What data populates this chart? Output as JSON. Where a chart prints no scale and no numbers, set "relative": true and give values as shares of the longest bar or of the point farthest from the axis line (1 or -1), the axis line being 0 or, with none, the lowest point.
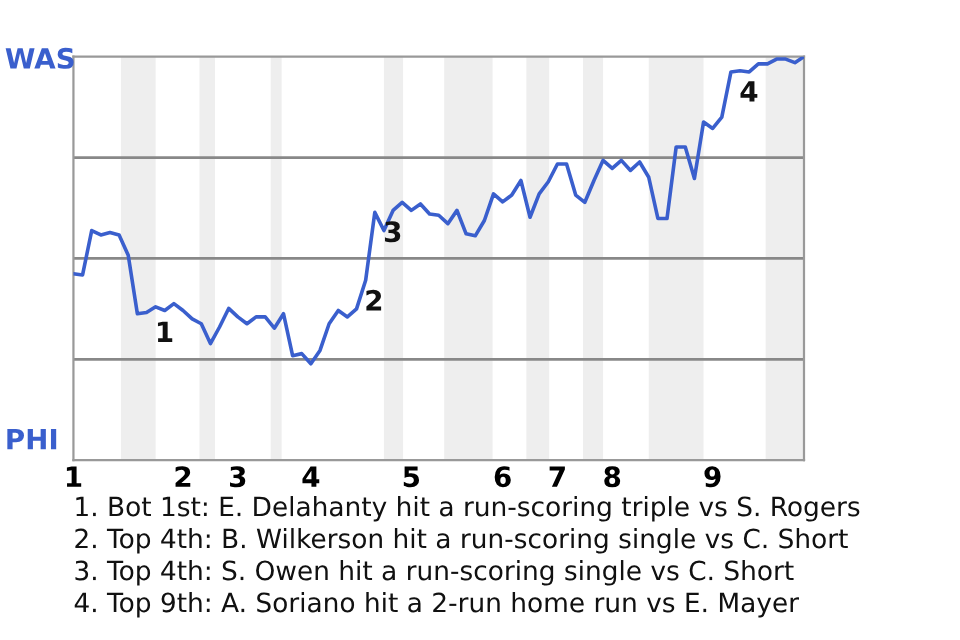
{
  "chart_data": {
    "type": "line",
    "relative": true,
    "categories": [
      "1",
      null,
      null,
      null,
      null,
      null,
      null,
      null,
      null,
      null,
      null,
      null,
      "2",
      null,
      null,
      null,
      null,
      null,
      "3",
      null,
      null,
      null,
      null,
      null,
      null,
      null,
      "4",
      null,
      null,
      null,
      null,
      null,
      null,
      null,
      null,
      null,
      null,
      "5",
      null,
      null,
      null,
      null,
      null,
      null,
      null,
      null,
      null,
      "6",
      null,
      null,
      null,
      null,
      null,
      "7",
      null,
      null,
      null,
      null,
      null,
      "8",
      null,
      null,
      null,
      null,
      null,
      null,
      null,
      null,
      null,
      null,
      "9",
      null,
      null,
      null,
      null,
      null,
      null,
      null,
      null,
      null,
      null
    ],
    "series": [
      {
        "color": "#3a5fcd",
        "values": [
          0.462,
          0.459,
          0.569,
          0.558,
          0.564,
          0.558,
          0.508,
          0.363,
          0.366,
          0.38,
          0.371,
          0.388,
          0.371,
          0.35,
          0.338,
          0.289,
          0.33,
          0.376,
          0.355,
          0.338,
          0.355,
          0.355,
          0.327,
          0.363,
          0.259,
          0.264,
          0.239,
          0.272,
          0.338,
          0.371,
          0.355,
          0.375,
          0.446,
          0.614,
          0.569,
          0.619,
          0.639,
          0.619,
          0.635,
          0.61,
          0.607,
          0.586,
          0.619,
          0.561,
          0.556,
          0.594,
          0.66,
          0.64,
          0.657,
          0.693,
          0.602,
          0.66,
          0.69,
          0.734,
          0.734,
          0.657,
          0.639,
          0.693,
          0.743,
          0.723,
          0.743,
          0.718,
          0.739,
          0.701,
          0.599,
          0.599,
          0.776,
          0.776,
          0.698,
          0.838,
          0.822,
          0.85,
          0.962,
          0.965,
          0.962,
          0.982,
          0.982,
          0.994,
          0.994,
          0.985,
          1.0
        ]
      }
    ],
    "ref_lines": [
      {
        "axis": "y",
        "value": 0.25,
        "color": "#888888"
      },
      {
        "axis": "y",
        "value": 0.5,
        "color": "#888888"
      },
      {
        "axis": "y",
        "value": 0.75,
        "color": "#888888"
      }
    ],
    "annotations": [
      "WAS",
      "PHI",
      "2",
      {
        "text": "1",
        "y": 0.366
      },
      {
        "text": "3",
        "y": 0.614
      },
      {
        "text": "4",
        "y": 0.962
      },
      "1. Bot 1st: E. Delahanty hit a run-scoring triple vs S. Rogers",
      "2. Top 4th: B. Wilkerson hit a run-scoring single vs C. Short",
      "3. Top 4th: S. Owen hit a run-scoring single vs C. Short",
      "4. Top 9th: A. Soriano hit a 2-run home run vs E. Mayer"
    ],
    "legend": false
  }
}
